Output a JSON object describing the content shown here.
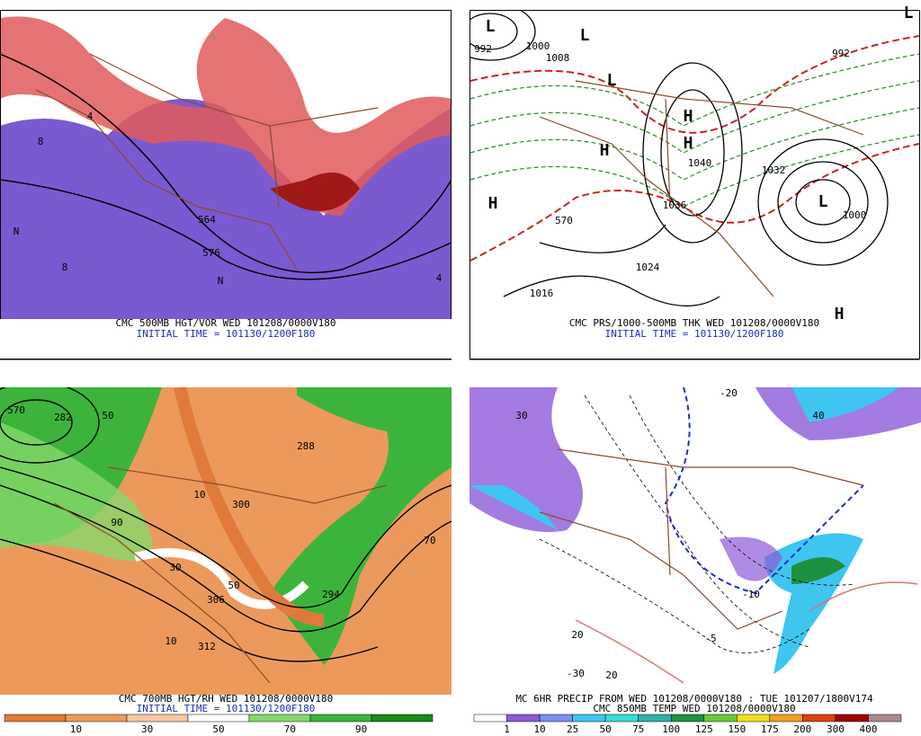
{
  "panels": [
    {
      "caption": "CMC 500MB HGT/VOR WED 101208/0000V180",
      "subcaption": "INITIAL TIME = 101130/1200F180",
      "labels": [
        "576",
        "564",
        "8",
        "4",
        "N",
        "N",
        "4",
        "8"
      ]
    },
    {
      "caption": "CMC PRS/1000-500MB THK WED 101208/0000V180",
      "subcaption": "INITIAL TIME = 101130/1200F180",
      "labels": [
        "992",
        "1000",
        "1008",
        "1040",
        "1036",
        "1032",
        "1024",
        "1016",
        "1000",
        "992",
        "570",
        "L",
        "L",
        "L",
        "L",
        "L",
        "H",
        "H",
        "H",
        "H",
        "H"
      ]
    },
    {
      "caption": "CMC 700MB HGT/RH WED 101208/0000V180",
      "subcaption": "INITIAL TIME = 101130/1200F180",
      "labels": [
        "570",
        "282",
        "50",
        "10",
        "300",
        "306",
        "312",
        "30",
        "288",
        "294",
        "90",
        "10",
        "70",
        "50"
      ],
      "colorbar": {
        "colors": [
          "#e07a3a",
          "#ec9a5c",
          "#f6c8a0",
          "#ffffff",
          "#86d86a",
          "#3cb43c",
          "#178a17"
        ],
        "labels": [
          "10",
          "30",
          "50",
          "70",
          "90"
        ]
      }
    },
    {
      "caption": "MC 6HR PRECIP FROM WED 101208/0000V180 : TUE 101207/1800V174",
      "subcaption": "CMC 850MB TEMP WED 101208/0000V180",
      "labels": [
        "30",
        "-20",
        "40",
        "-10",
        "-30",
        "20",
        "20",
        "-5"
      ],
      "colorbar": {
        "colors": [
          "#ffffff",
          "#8c5ad8",
          "#7e8ef2",
          "#3ec6f0",
          "#35dcd8",
          "#2fb0a8",
          "#1e9040",
          "#67c93a",
          "#f0e020",
          "#f0a020",
          "#e04010",
          "#a00000",
          "#b08890"
        ],
        "labels": [
          "1",
          "10",
          "25",
          "50",
          "75",
          "100",
          "125",
          "150",
          "175",
          "200",
          "300",
          "400"
        ]
      }
    }
  ]
}
